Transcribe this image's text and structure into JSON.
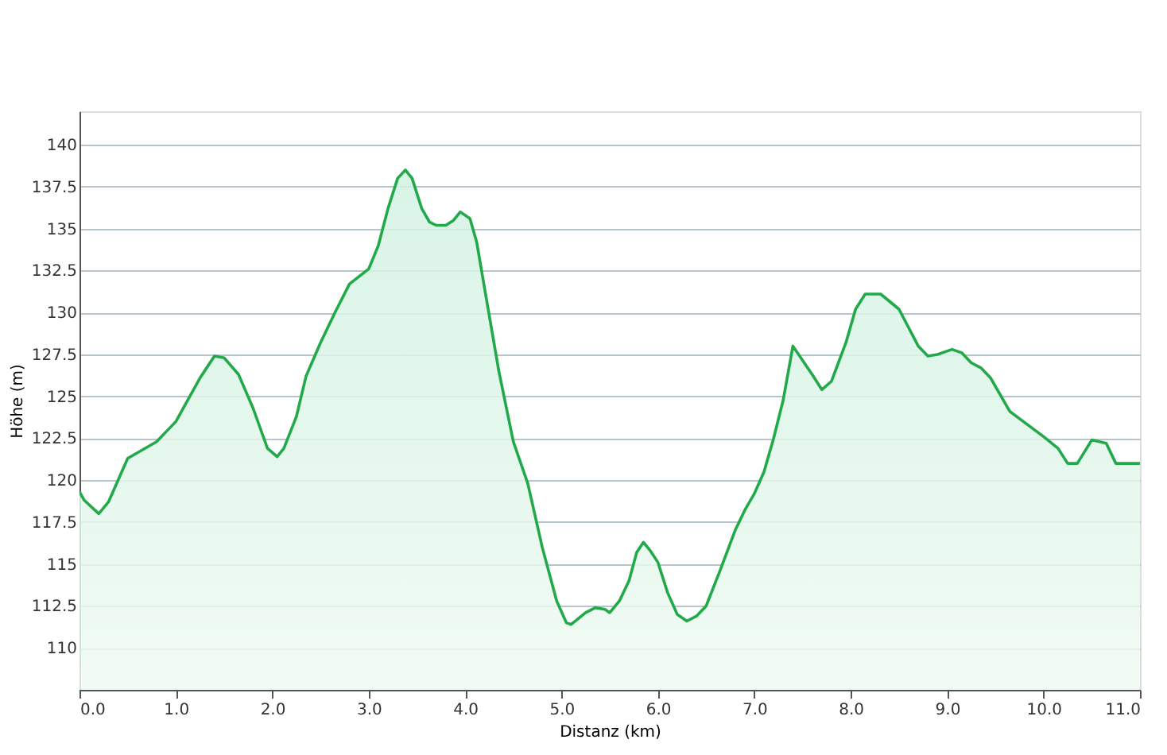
{
  "chart_data": {
    "type": "area",
    "xlabel": "Distanz  (km)",
    "ylabel": "Höhe (m)",
    "x": [
      0,
      0.05,
      0.2,
      0.3,
      0.5,
      0.8,
      1.0,
      1.25,
      1.4,
      1.5,
      1.65,
      1.8,
      1.95,
      2.05,
      2.12,
      2.25,
      2.35,
      2.5,
      2.65,
      2.8,
      3.0,
      3.1,
      3.2,
      3.3,
      3.38,
      3.45,
      3.55,
      3.63,
      3.7,
      3.8,
      3.88,
      3.95,
      4.05,
      4.12,
      4.2,
      4.35,
      4.5,
      4.65,
      4.8,
      4.95,
      5.05,
      5.1,
      5.25,
      5.35,
      5.45,
      5.5,
      5.6,
      5.7,
      5.78,
      5.85,
      5.92,
      6.0,
      6.1,
      6.2,
      6.3,
      6.4,
      6.5,
      6.65,
      6.8,
      6.9,
      7.0,
      7.1,
      7.2,
      7.3,
      7.4,
      7.6,
      7.7,
      7.8,
      7.95,
      8.05,
      8.15,
      8.31,
      8.5,
      8.7,
      8.8,
      8.9,
      9.05,
      9.15,
      9.25,
      9.35,
      9.45,
      9.65,
      10.0,
      10.15,
      10.25,
      10.35,
      10.5,
      10.65,
      10.75,
      11.0
    ],
    "series": [
      {
        "color": "#22aa4a",
        "values": [
          119.3,
          118.8,
          118.0,
          118.7,
          121.3,
          122.3,
          123.5,
          126.1,
          127.4,
          127.3,
          126.3,
          124.3,
          121.9,
          121.4,
          121.9,
          123.8,
          126.2,
          128.2,
          130.0,
          131.7,
          132.6,
          134.0,
          136.2,
          138.0,
          138.5,
          138.0,
          136.2,
          135.4,
          135.2,
          135.2,
          135.5,
          136.0,
          135.6,
          134.2,
          131.5,
          126.5,
          122.3,
          119.8,
          116.0,
          112.8,
          111.5,
          111.4,
          112.1,
          112.4,
          112.3,
          112.1,
          112.8,
          114.0,
          115.7,
          116.3,
          115.8,
          115.1,
          113.3,
          112.0,
          111.6,
          111.9,
          112.5,
          114.7,
          117.0,
          118.2,
          119.2,
          120.5,
          122.5,
          124.8,
          128.0,
          126.3,
          125.4,
          125.9,
          128.2,
          130.2,
          131.1,
          131.1,
          130.2,
          128.0,
          127.4,
          127.5,
          127.8,
          127.6,
          127.0,
          126.7,
          126.1,
          124.1,
          122.6,
          121.9,
          121.0,
          121.0,
          122.4,
          122.2,
          121.0,
          121.0
        ]
      }
    ],
    "xlim": [
      0,
      11
    ],
    "ylim": [
      107.5,
      142
    ],
    "xticks": [
      {
        "value": 0,
        "label": "0.0"
      },
      {
        "value": 1,
        "label": "1.0"
      },
      {
        "value": 2,
        "label": "2.0"
      },
      {
        "value": 3,
        "label": "3.0"
      },
      {
        "value": 4,
        "label": "4.0"
      },
      {
        "value": 5,
        "label": "5.0"
      },
      {
        "value": 6,
        "label": "6.0"
      },
      {
        "value": 7,
        "label": "7.0"
      },
      {
        "value": 8,
        "label": "8.0"
      },
      {
        "value": 9,
        "label": "9.0"
      },
      {
        "value": 10,
        "label": "10.0"
      },
      {
        "value": 11,
        "label": "11.0"
      }
    ],
    "yticks": [
      110,
      112.5,
      115,
      117.5,
      120,
      122.5,
      125,
      127.5,
      130,
      132.5,
      135,
      137.5,
      140
    ],
    "grid": "y",
    "marker": "none",
    "line_style": "solid"
  }
}
